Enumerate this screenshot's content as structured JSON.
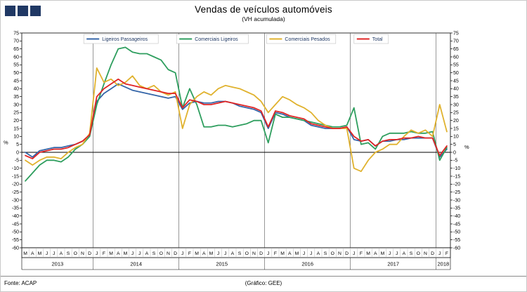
{
  "header": {
    "title": "Vendas de veículos automóveis",
    "subtitle": "(VH acumulada)",
    "logo_color": "#1f3864"
  },
  "footer": {
    "source": "Fonte: ACAP",
    "credit": "(Gráfico: GEE)"
  },
  "chart_data": {
    "type": "line",
    "title": "Vendas de veículos automóveis",
    "subtitle": "(VH acumulada)",
    "ylabel_left": "%",
    "ylabel_right": "%",
    "ylim": [
      -60,
      75
    ],
    "ytick_step": 5,
    "grid": false,
    "zero_line": true,
    "legend_position": "top-inside",
    "legend_text_color": "#1f3864",
    "x_labels": [
      "M",
      "A",
      "M",
      "J",
      "J",
      "A",
      "S",
      "O",
      "N",
      "D",
      "J",
      "F",
      "M",
      "A",
      "M",
      "J",
      "J",
      "A",
      "S",
      "O",
      "N",
      "D",
      "J",
      "F",
      "M",
      "A",
      "M",
      "J",
      "J",
      "A",
      "S",
      "O",
      "N",
      "D",
      "J",
      "F",
      "M",
      "A",
      "M",
      "J",
      "J",
      "A",
      "S",
      "O",
      "N",
      "D",
      "J",
      "F",
      "M",
      "A",
      "M",
      "J",
      "J",
      "A",
      "S",
      "O",
      "N",
      "D",
      "J",
      "F"
    ],
    "years": [
      {
        "label": "2013",
        "months": 10
      },
      {
        "label": "2014",
        "months": 12
      },
      {
        "label": "2015",
        "months": 12
      },
      {
        "label": "2016",
        "months": 12
      },
      {
        "label": "2017",
        "months": 12
      },
      {
        "label": "2018",
        "months": 2
      }
    ],
    "series": [
      {
        "name": "Ligeiros Passageiros",
        "color": "#3465a8",
        "values": [
          0,
          -3,
          1,
          2,
          3,
          3,
          4,
          5,
          7,
          11,
          32,
          37,
          40,
          43,
          41,
          39,
          38,
          37,
          36,
          35,
          34,
          35,
          27,
          31,
          32,
          31,
          31,
          32,
          32,
          31,
          29,
          28,
          27,
          25,
          15,
          25,
          24,
          22,
          21,
          20,
          17,
          16,
          15,
          15,
          15,
          16,
          8,
          7,
          8,
          4,
          7,
          7,
          8,
          8,
          9,
          9,
          9,
          9,
          -3,
          2
        ]
      },
      {
        "name": "Comerciais Ligeiros",
        "color": "#2e9e5e",
        "values": [
          -18,
          -13,
          -8,
          -5,
          -5,
          -6,
          -3,
          2,
          5,
          10,
          30,
          43,
          55,
          65,
          66,
          63,
          62,
          62,
          60,
          58,
          52,
          50,
          28,
          40,
          30,
          16,
          16,
          17,
          17,
          16,
          17,
          18,
          20,
          20,
          6,
          24,
          22,
          22,
          21,
          20,
          19,
          18,
          17,
          16,
          16,
          17,
          28,
          5,
          6,
          2,
          10,
          12,
          12,
          12,
          13,
          12,
          12,
          13,
          -5,
          3
        ]
      },
      {
        "name": "Comerciais Pesados",
        "color": "#e0b22e",
        "values": [
          -5,
          -8,
          -5,
          -3,
          -3,
          -4,
          0,
          3,
          5,
          12,
          53,
          44,
          46,
          42,
          44,
          48,
          42,
          40,
          42,
          38,
          36,
          38,
          15,
          30,
          35,
          38,
          36,
          40,
          42,
          41,
          40,
          38,
          36,
          32,
          25,
          30,
          35,
          33,
          30,
          28,
          25,
          20,
          17,
          15,
          15,
          15,
          -10,
          -12,
          -5,
          0,
          2,
          5,
          5,
          10,
          14,
          12,
          14,
          10,
          30,
          13
        ]
      },
      {
        "name": "Total",
        "color": "#e02424",
        "values": [
          -2,
          -4,
          0,
          1,
          2,
          2,
          3,
          5,
          7,
          11,
          35,
          40,
          43,
          46,
          43,
          42,
          41,
          40,
          39,
          38,
          37,
          37,
          28,
          33,
          32,
          30,
          30,
          31,
          32,
          31,
          30,
          29,
          28,
          26,
          16,
          26,
          25,
          23,
          22,
          21,
          18,
          17,
          16,
          15,
          15,
          16,
          10,
          7,
          8,
          4,
          7,
          8,
          8,
          9,
          9,
          10,
          9,
          9,
          -2,
          4
        ]
      }
    ]
  }
}
